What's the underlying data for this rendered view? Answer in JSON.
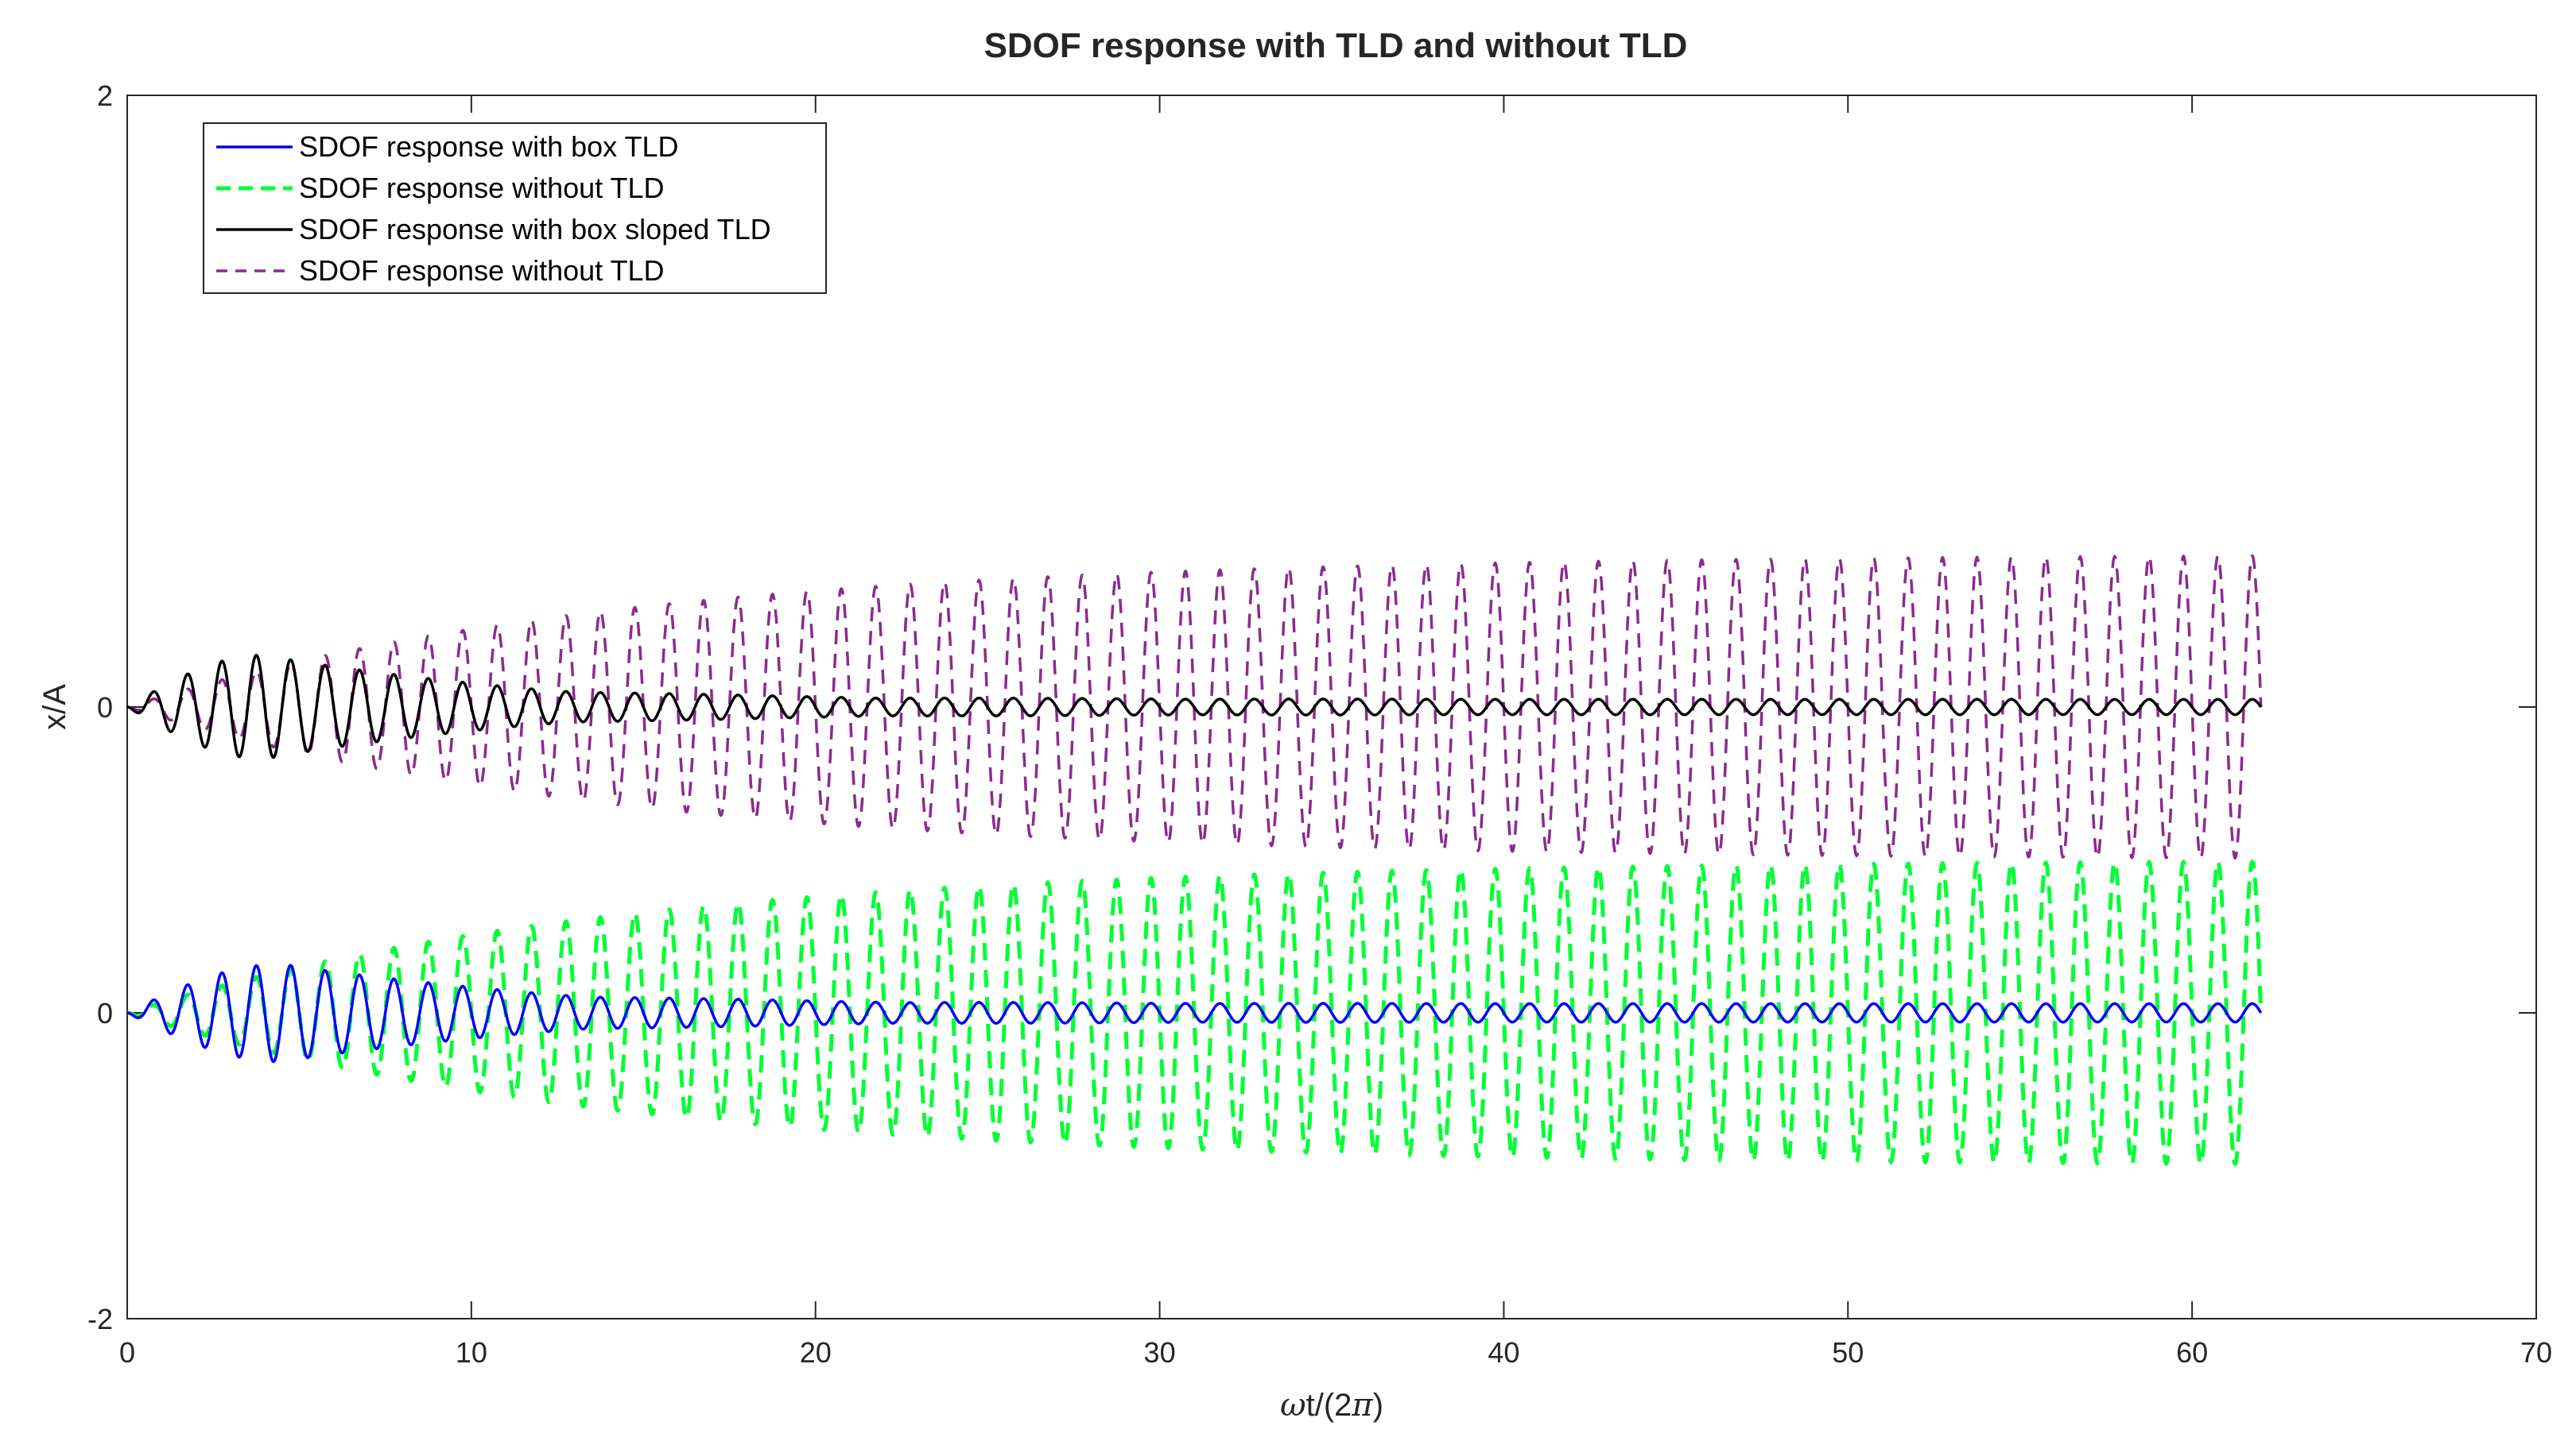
{
  "chart_data": {
    "type": "line",
    "title": "SDOF response with TLD and without TLD",
    "xlabel_greek": "ω",
    "xlabel_rest": "t/(2",
    "xlabel_pi": "π",
    "xlabel_close": ")",
    "ylabel": "x/A",
    "xlim": [
      0,
      70
    ],
    "ylim": [
      -2,
      2
    ],
    "grid": false,
    "legend_position": "top-left",
    "xticks": [
      0,
      10,
      20,
      30,
      40,
      50,
      60,
      70
    ],
    "xtick_labels": [
      "0",
      "10",
      "20",
      "30",
      "40",
      "50",
      "60",
      "70"
    ],
    "yticks": [
      -2,
      0,
      2
    ],
    "ytick_labels": [
      "-2",
      "0",
      "2"
    ],
    "extra_ytick_label": "0",
    "note": "Two stacked response groups: upper group offset so its baseline is at y=2/... shown tick labels: 2, 0 (upper baseline), 0 (lower baseline), -2",
    "ytick_display": [
      {
        "value": 2,
        "label": "2"
      },
      {
        "value": 0.0,
        "label": "0",
        "group": "upper"
      },
      {
        "value": -1.0,
        "label": "0",
        "group": "lower"
      },
      {
        "value": -2,
        "label": "-2"
      }
    ],
    "x_end": 62,
    "cycles_per_unit": 1,
    "series": [
      {
        "name": "SDOF response with box TLD",
        "color": "#0000ff",
        "dash": "solid",
        "baseline": -1.0,
        "envelope": {
          "peak_x": 4.5,
          "peak_amp": 0.16,
          "steady_amp": 0.03
        }
      },
      {
        "name": "SDOF response without TLD",
        "color": "#00ff33",
        "dash": "dashed",
        "baseline": -1.0,
        "envelope": {
          "growth_tau": 14,
          "max_amp": 0.5
        }
      },
      {
        "name": "SDOF response with box sloped TLD",
        "color": "#000000",
        "dash": "solid",
        "baseline": 0.0,
        "envelope": {
          "peak_x": 4.0,
          "peak_amp": 0.17,
          "steady_amp": 0.025
        }
      },
      {
        "name": "SDOF response without TLD",
        "color": "#8b2a8f",
        "dash": "dashed",
        "baseline": 0.0,
        "envelope": {
          "growth_tau": 14,
          "max_amp": 0.5
        }
      }
    ]
  }
}
